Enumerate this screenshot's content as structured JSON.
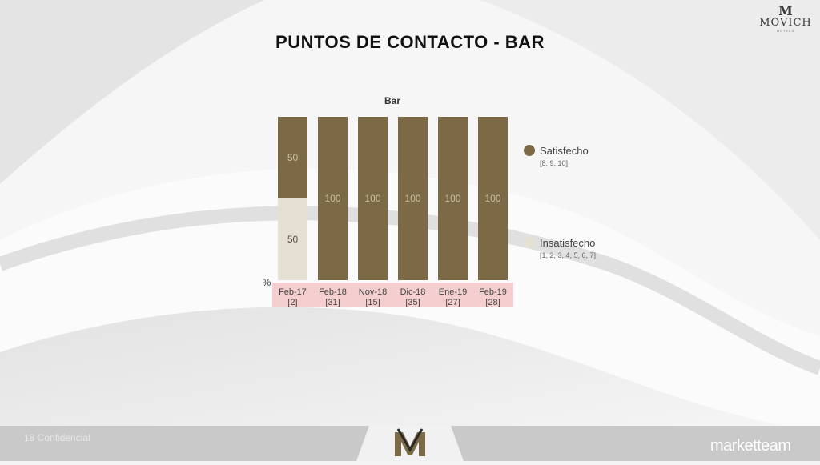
{
  "page": {
    "title": "PUNTOS DE CONTACTO - BAR",
    "logo": {
      "mark": "M",
      "name": "MOVICH",
      "sub": "HOTELS"
    },
    "footer": {
      "left_text": "18 Confidencial",
      "brand": "marketteam"
    }
  },
  "colors": {
    "satisfied": "#7c6a47",
    "unsatisfied": "#e6dfd4",
    "axis_band": "#f5cfcf",
    "bar_label_on_dark": "#cdbf9f",
    "bar_label_on_light": "#5a5040"
  },
  "chart_data": {
    "type": "bar",
    "stacked": true,
    "title": "Bar",
    "ylabel": "%",
    "ylim": [
      0,
      100
    ],
    "grid": false,
    "legend_position": "right",
    "categories": [
      "Feb-17",
      "Feb-18",
      "Nov-18",
      "Dic-18",
      "Ene-19",
      "Feb-19"
    ],
    "category_counts": [
      "[2]",
      "[31]",
      "[15]",
      "[35]",
      "[27]",
      "[28]"
    ],
    "series": [
      {
        "name": "Insatisfecho",
        "note": "[1, 2, 3, 4, 5, 6, 7]",
        "color": "#e6dfd4",
        "values": [
          50,
          0,
          0,
          0,
          0,
          0
        ]
      },
      {
        "name": "Satisfecho",
        "note": "[8, 9, 10]",
        "color": "#7c6a47",
        "values": [
          50,
          100,
          100,
          100,
          100,
          100
        ]
      }
    ]
  }
}
